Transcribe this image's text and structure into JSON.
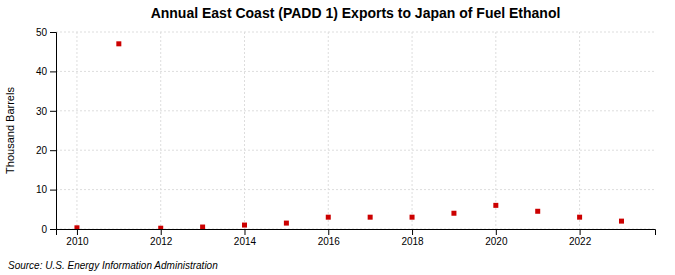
{
  "chart_data": {
    "type": "scatter",
    "title": "Annual East Coast (PADD 1) Exports to Japan of Fuel Ethanol",
    "y_label": "Thousand Barrels",
    "annotations": [
      "Source: U.S. Energy Information Administration"
    ],
    "x": [
      2010,
      2011,
      2012,
      2013,
      2014,
      2015,
      2016,
      2017,
      2018,
      2019,
      2020,
      2021,
      2022,
      2023
    ],
    "values": [
      0.3,
      47,
      0.2,
      0.5,
      1.0,
      1.5,
      3.0,
      3.0,
      3.0,
      4.0,
      6.0,
      4.5,
      3.0,
      2.0
    ],
    "color": "#cc0000",
    "marker": "square",
    "xlim": [
      2009.5,
      2023.8
    ],
    "xticks": [
      2010,
      2012,
      2014,
      2016,
      2018,
      2020,
      2022
    ],
    "ylim": [
      0,
      50
    ],
    "yticks": [
      0,
      10,
      20,
      30,
      40,
      50
    ],
    "grid": true
  }
}
